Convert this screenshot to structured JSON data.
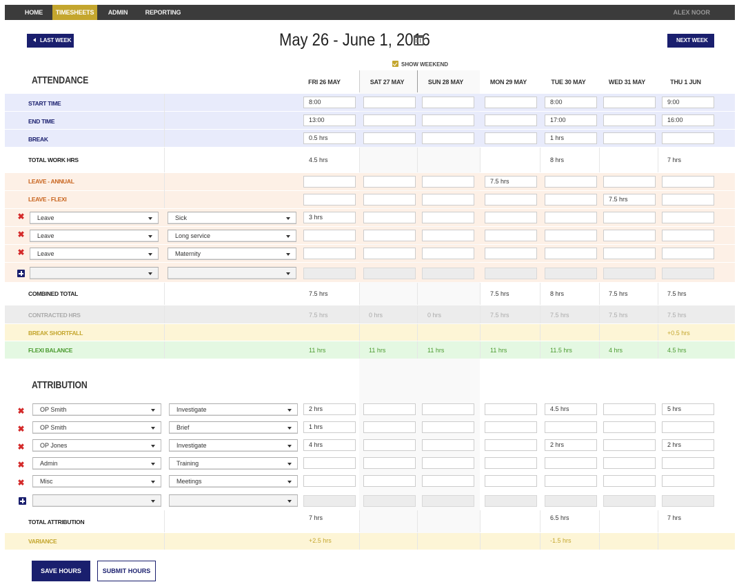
{
  "nav": {
    "home": "HOME",
    "timesheets": "TIMESHEETS",
    "admin": "ADMIN",
    "reporting": "REPORTING",
    "user": "ALEX NOOR"
  },
  "header": {
    "last_week": "LAST WEEK",
    "next_week": "NEXT WEEK",
    "title": "May 26 - June 1, 2016",
    "show_weekend": "SHOW WEEKEND"
  },
  "days": [
    "FRI 26 MAY",
    "SAT 27 MAY",
    "SUN 28 MAY",
    "MON 29 MAY",
    "TUE 30 MAY",
    "WED 31 MAY",
    "THU 1 JUN"
  ],
  "attendance": {
    "title": "ATTENDANCE",
    "start_time": {
      "label": "START TIME",
      "values": [
        "8:00",
        "",
        "",
        "",
        "8:00",
        "",
        "9:00"
      ]
    },
    "end_time": {
      "label": "END TIME",
      "values": [
        "13:00",
        "",
        "",
        "",
        "17:00",
        "",
        "16:00"
      ]
    },
    "break": {
      "label": "BREAK",
      "values": [
        "0.5 hrs",
        "",
        "",
        "",
        "1 hrs",
        "",
        ""
      ]
    },
    "total_work": {
      "label": "TOTAL WORK HRS",
      "values": [
        "4.5 hrs",
        "",
        "",
        "",
        "8 hrs",
        "",
        "7 hrs"
      ]
    },
    "leave_annual": {
      "label": "LEAVE - ANNUAL",
      "values": [
        "",
        "",
        "",
        "7.5 hrs",
        "",
        "",
        ""
      ]
    },
    "leave_flexi": {
      "label": "LEAVE - FLEXI",
      "values": [
        "",
        "",
        "",
        "",
        "",
        "7.5 hrs",
        ""
      ]
    },
    "leave_rows": [
      {
        "type": "Leave",
        "sub": "Sick",
        "values": [
          "3 hrs",
          "",
          "",
          "",
          "",
          "",
          ""
        ]
      },
      {
        "type": "Leave",
        "sub": "Long service",
        "values": [
          "",
          "",
          "",
          "",
          "",
          "",
          ""
        ]
      },
      {
        "type": "Leave",
        "sub": "Maternity",
        "values": [
          "",
          "",
          "",
          "",
          "",
          "",
          ""
        ]
      }
    ],
    "combined_total": {
      "label": "COMBINED TOTAL",
      "values": [
        "7.5 hrs",
        "",
        "",
        "7.5 hrs",
        "8 hrs",
        "7.5 hrs",
        "7.5 hrs"
      ]
    },
    "contracted": {
      "label": "CONTRACTED HRS",
      "values": [
        "7.5 hrs",
        "0 hrs",
        "0 hrs",
        "7.5 hrs",
        "7.5 hrs",
        "7.5 hrs",
        "7.5 hrs"
      ]
    },
    "break_shortfall": {
      "label": "BREAK SHORTFALL",
      "values": [
        "",
        "",
        "",
        "",
        "",
        "",
        "+0.5 hrs"
      ]
    },
    "flexi_balance": {
      "label": "FLEXI BALANCE",
      "values": [
        "11 hrs",
        "11 hrs",
        "11 hrs",
        "11 hrs",
        "11.5 hrs",
        "4 hrs",
        "4.5 hrs"
      ]
    }
  },
  "attribution": {
    "title": "ATTRIBUTION",
    "rows": [
      {
        "who": "OP Smith",
        "task": "Investigate",
        "values": [
          "2 hrs",
          "",
          "",
          "",
          "4.5 hrs",
          "",
          "5 hrs"
        ]
      },
      {
        "who": "OP Smith",
        "task": "Brief",
        "values": [
          "1 hrs",
          "",
          "",
          "",
          "",
          "",
          ""
        ]
      },
      {
        "who": "OP Jones",
        "task": "Investigate",
        "values": [
          "4 hrs",
          "",
          "",
          "",
          "2 hrs",
          "",
          "2 hrs"
        ]
      },
      {
        "who": "Admin",
        "task": "Training",
        "values": [
          "",
          "",
          "",
          "",
          "",
          "",
          ""
        ]
      },
      {
        "who": "Misc",
        "task": "Meetings",
        "values": [
          "",
          "",
          "",
          "",
          "",
          "",
          ""
        ]
      }
    ],
    "total": {
      "label": "TOTAL ATTRIBUTION",
      "values": [
        "7 hrs",
        "",
        "",
        "",
        "6.5 hrs",
        "",
        "7 hrs"
      ]
    },
    "variance": {
      "label": "VARIANCE",
      "values": [
        "+2.5 hrs",
        "",
        "",
        "",
        "-1.5 hrs",
        "",
        ""
      ]
    }
  },
  "actions": {
    "save": "SAVE HOURS",
    "submit": "SUBMIT HOURS"
  },
  "colors": {
    "navy": "#1a1f6e",
    "gold": "#c4a62e",
    "delete_red": "#d42a2a"
  }
}
